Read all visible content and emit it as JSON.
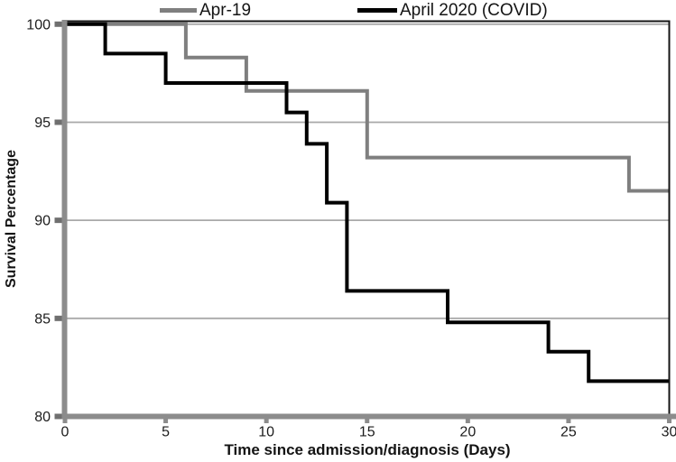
{
  "figure": {
    "background": "#ffffff"
  },
  "legend": {
    "position": "top",
    "items": [
      {
        "label": "Apr-19",
        "color": "#7f7f7f"
      },
      {
        "label": "April 2020 (COVID)",
        "color": "#000000"
      }
    ]
  },
  "chart_data": {
    "type": "line",
    "subtype": "kaplan-meier-step",
    "title": "",
    "xlabel": "Time since admission/diagnosis (Days)",
    "ylabel": "Survival Percentage",
    "xlim": [
      0,
      30
    ],
    "ylim": [
      80,
      100
    ],
    "xticks": [
      0,
      5,
      10,
      15,
      20,
      25,
      30
    ],
    "yticks": [
      100,
      95,
      90,
      85,
      80
    ],
    "grid": true,
    "gridline_color": "#a9a9a9",
    "axis_color": "#8c8c8c",
    "tick_mark_color": "#6f6f6f",
    "border_color": "#141414",
    "legend_position": "top",
    "series": [
      {
        "name": "Apr-19",
        "color": "#7f7f7f",
        "line_width": 4,
        "start_survival": 100,
        "end_day": 30,
        "drops": [
          {
            "day": 6,
            "survival": 98.3
          },
          {
            "day": 9,
            "survival": 96.6
          },
          {
            "day": 15,
            "survival": 93.2
          },
          {
            "day": 28,
            "survival": 91.5
          }
        ]
      },
      {
        "name": "April 2020 (COVID)",
        "color": "#000000",
        "line_width": 4,
        "start_survival": 100,
        "end_day": 30,
        "drops": [
          {
            "day": 2,
            "survival": 98.5
          },
          {
            "day": 5,
            "survival": 97.0
          },
          {
            "day": 11,
            "survival": 95.5
          },
          {
            "day": 12,
            "survival": 93.9
          },
          {
            "day": 13,
            "survival": 90.9
          },
          {
            "day": 14,
            "survival": 86.4
          },
          {
            "day": 19,
            "survival": 84.8
          },
          {
            "day": 24,
            "survival": 83.3
          },
          {
            "day": 26,
            "survival": 81.8
          }
        ]
      }
    ]
  }
}
